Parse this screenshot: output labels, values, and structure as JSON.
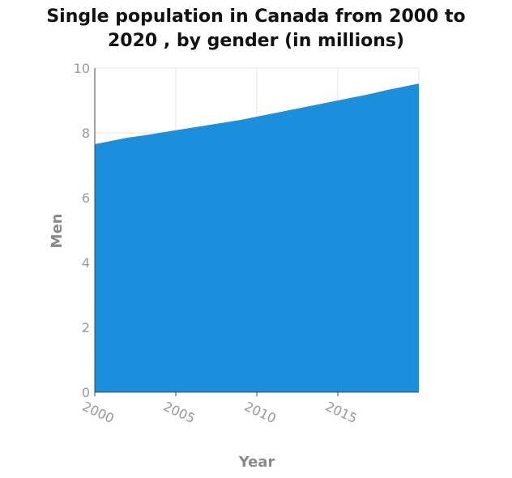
{
  "title_lines": [
    "Single population in Canada from 2000 to",
    "2020 , by gender (in millions)"
  ],
  "chart_data": {
    "type": "area",
    "title": "Single population in Canada from 2000 to 2020 , by gender (in millions)",
    "xlabel": "Year",
    "ylabel": "Men",
    "xlim": [
      2000,
      2020
    ],
    "ylim": [
      0,
      10
    ],
    "x_ticks": [
      2000,
      2005,
      2010,
      2015
    ],
    "y_ticks": [
      0,
      2,
      4,
      6,
      8,
      10
    ],
    "grid": true,
    "legend": "none",
    "series": [
      {
        "color": "#1a8fdb",
        "x": [
          2000,
          2001,
          2002,
          2003,
          2004,
          2005,
          2006,
          2007,
          2008,
          2009,
          2010,
          2011,
          2012,
          2013,
          2014,
          2015,
          2016,
          2017,
          2018,
          2019,
          2020
        ],
        "values": [
          7.65,
          7.75,
          7.85,
          7.92,
          8.0,
          8.08,
          8.16,
          8.24,
          8.32,
          8.4,
          8.5,
          8.6,
          8.7,
          8.8,
          8.9,
          9.0,
          9.1,
          9.2,
          9.32,
          9.42,
          9.52
        ]
      }
    ]
  }
}
